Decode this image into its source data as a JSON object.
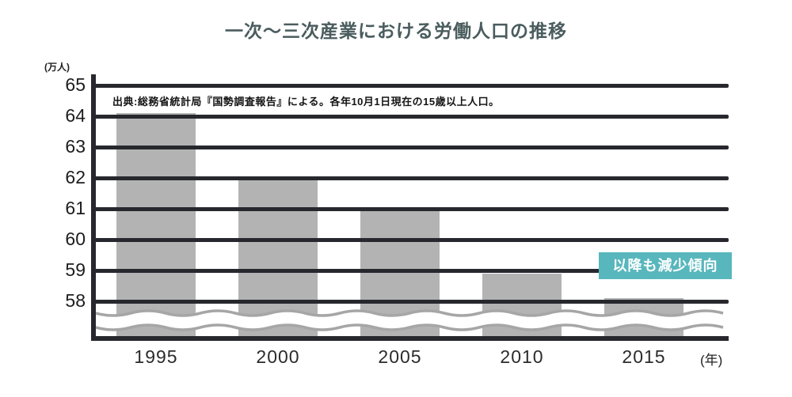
{
  "title": "一次〜三次産業における労働人口の推移",
  "source_note": "出典:総務省統計局『国勢調査報告』による。各年10月1日現在の15歳以上人口。",
  "badge": {
    "label": "以降も減少傾向",
    "bg_color": "#58b7bd",
    "text_color": "#ffffff"
  },
  "chart_data": {
    "type": "bar",
    "title": "一次〜三次産業における労働人口の推移",
    "categories": [
      "1995",
      "2000",
      "2005",
      "2010",
      "2015"
    ],
    "values": [
      64.1,
      62.0,
      61.0,
      58.9,
      58.1
    ],
    "xlabel": "(年)",
    "ylabel": "(万人)",
    "ylim": [
      58,
      65
    ],
    "yticks": [
      65,
      64,
      63,
      62,
      61,
      60,
      59,
      58
    ],
    "axis_break": true,
    "grid": true,
    "legend": "none",
    "bar_color": "#b3b3b3",
    "gridline_color": "#27272e",
    "annotation": "以降も減少傾向"
  }
}
